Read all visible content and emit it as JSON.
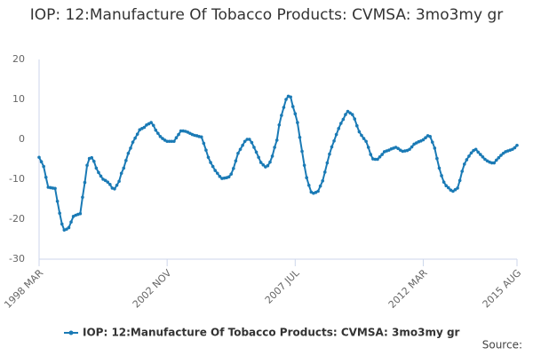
{
  "chart_data": {
    "type": "line",
    "title": "IOP: 12:Manufacture Of Tobacco Products: CVMSA: 3mo3my gr",
    "source": "Source:",
    "categories": [
      "1998 MAR",
      null,
      null,
      null,
      null,
      null,
      null,
      null,
      null,
      null,
      null,
      null,
      null,
      null,
      null,
      null,
      null,
      null,
      null,
      null,
      null,
      null,
      null,
      null,
      null,
      null,
      null,
      null,
      null,
      null,
      null,
      null,
      null,
      null,
      null,
      null,
      null,
      null,
      null,
      null,
      null,
      null,
      null,
      null,
      null,
      null,
      null,
      null,
      null,
      null,
      null,
      null,
      null,
      null,
      null,
      null,
      "2002 NOV",
      null,
      null,
      null,
      null,
      null,
      null,
      null,
      null,
      null,
      null,
      null,
      null,
      null,
      null,
      null,
      null,
      null,
      null,
      null,
      null,
      null,
      null,
      null,
      null,
      null,
      null,
      null,
      null,
      null,
      null,
      null,
      null,
      null,
      null,
      null,
      null,
      null,
      null,
      null,
      null,
      null,
      null,
      null,
      null,
      null,
      null,
      null,
      null,
      null,
      null,
      null,
      null,
      null,
      null,
      null,
      "2007 JUL",
      null,
      null,
      null,
      null,
      null,
      null,
      null,
      null,
      null,
      null,
      null,
      null,
      null,
      null,
      null,
      null,
      null,
      null,
      null,
      null,
      null,
      null,
      null,
      null,
      null,
      null,
      null,
      null,
      null,
      null,
      null,
      null,
      null,
      null,
      null,
      null,
      null,
      null,
      null,
      null,
      null,
      null,
      null,
      null,
      null,
      null,
      null,
      null,
      null,
      null,
      null,
      null,
      null,
      null,
      null,
      "2012 MAR",
      null,
      null,
      null,
      null,
      null,
      null,
      null,
      null,
      null,
      null,
      null,
      null,
      null,
      null,
      null,
      null,
      null,
      null,
      null,
      null,
      null,
      null,
      null,
      null,
      null,
      null,
      null,
      null,
      null,
      null,
      null,
      null,
      null,
      null,
      null,
      null,
      null,
      null,
      null,
      null,
      "2015 AUG"
    ],
    "series": [
      {
        "name": "IOP: 12:Manufacture Of Tobacco Products: CVMSA: 3mo3my gr",
        "color": "#1a7ab5",
        "values": [
          -4.5,
          -5.6,
          -6.8,
          -9.5,
          -12,
          -12.1,
          -12.2,
          -12.3,
          -15.5,
          -18.5,
          -21.2,
          -22.7,
          -22.5,
          -22.1,
          -20.7,
          -19.3,
          -19,
          -18.8,
          -18.6,
          -14.5,
          -10.8,
          -6.5,
          -4.8,
          -4.6,
          -5.5,
          -7.2,
          -8.3,
          -9.2,
          -10,
          -10.3,
          -10.7,
          -11.3,
          -12.2,
          -12.4,
          -11.5,
          -10.5,
          -8.5,
          -7.2,
          -5.3,
          -3.5,
          -2.2,
          -0.7,
          0.3,
          1.3,
          2.4,
          2.7,
          3,
          3.6,
          3.9,
          4.2,
          3.5,
          2.3,
          1.5,
          0.7,
          0.2,
          -0.2,
          -0.5,
          -0.5,
          -0.5,
          -0.5,
          0.4,
          1.2,
          2.1,
          2.1,
          2,
          1.8,
          1.5,
          1.2,
          1,
          0.9,
          0.7,
          0.6,
          -1,
          -2.7,
          -4.5,
          -5.8,
          -6.8,
          -7.8,
          -8.5,
          -9.3,
          -9.8,
          -9.7,
          -9.6,
          -9.4,
          -8.7,
          -7.3,
          -5.4,
          -3.5,
          -2.5,
          -1.5,
          -0.5,
          0,
          0,
          -0.8,
          -2,
          -3.2,
          -4.5,
          -5.8,
          -6.4,
          -6.9,
          -6.6,
          -5.7,
          -4.2,
          -2,
          -0.2,
          3.6,
          6,
          8,
          10,
          10.8,
          10.6,
          8.2,
          6.4,
          4.2,
          0.5,
          -3,
          -6.5,
          -9.6,
          -11.5,
          -13.2,
          -13.5,
          -13.3,
          -13,
          -11.7,
          -10.4,
          -8.2,
          -5.9,
          -3.7,
          -1.9,
          -0.4,
          1.2,
          2.7,
          4,
          5,
          6.2,
          7,
          6.6,
          6.2,
          5.1,
          3.4,
          1.9,
          1,
          0.2,
          -0.5,
          -2,
          -3.8,
          -4.9,
          -5,
          -5,
          -4.4,
          -3.8,
          -3.1,
          -2.9,
          -2.7,
          -2.4,
          -2.2,
          -2,
          -2.3,
          -2.7,
          -3,
          -2.9,
          -2.8,
          -2.5,
          -1.9,
          -1.2,
          -0.9,
          -0.6,
          -0.4,
          -0.1,
          0.4,
          0.9,
          0.7,
          -0.7,
          -2.2,
          -4.8,
          -7.2,
          -9.1,
          -10.7,
          -11.6,
          -12.1,
          -12.7,
          -13,
          -12.6,
          -12.2,
          -10.3,
          -8,
          -6.2,
          -5.1,
          -4.2,
          -3.4,
          -2.8,
          -2.5,
          -3.2,
          -3.8,
          -4.4,
          -5,
          -5.4,
          -5.7,
          -5.9,
          -5.9,
          -5.2,
          -4.6,
          -4,
          -3.5,
          -3.1,
          -2.9,
          -2.7,
          -2.5,
          -2.1,
          -1.5
        ]
      }
    ],
    "ylim": [
      -30,
      20
    ],
    "yticks": [
      -30,
      -20,
      -10,
      0,
      10,
      20
    ],
    "grid": false,
    "legend": "bottom"
  }
}
